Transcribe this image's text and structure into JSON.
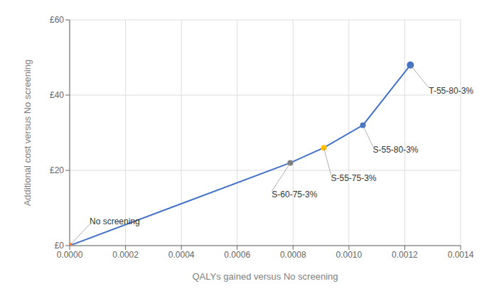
{
  "chart_data": {
    "type": "line",
    "x": [
      0.0,
      0.00079,
      0.00091,
      0.00105,
      0.00122
    ],
    "values": [
      0,
      22,
      26,
      32,
      48
    ],
    "color": "#4472C4",
    "colors": [
      "#E87722",
      "#7F7F7F",
      "#FFC000",
      "#4472C4",
      "#4472C4"
    ],
    "x_label": "QALYs gained versus No screening",
    "y_label": "Additional cost versus No screening",
    "xlim": [
      0.0,
      0.0014
    ],
    "ylim": [
      0,
      60
    ],
    "xticks": [
      {
        "value": 0.0,
        "label": "0.0000"
      },
      {
        "value": 0.0002,
        "label": "0.0002"
      },
      {
        "value": 0.0004,
        "label": "0.0004"
      },
      {
        "value": 0.0006,
        "label": "0.0006"
      },
      {
        "value": 0.0008,
        "label": "0.0008"
      },
      {
        "value": 0.001,
        "label": "0.0010"
      },
      {
        "value": 0.0012,
        "label": "0.0012"
      },
      {
        "value": 0.0014,
        "label": "0.0014"
      }
    ],
    "yticks": [
      {
        "value": 0,
        "label": "£0"
      },
      {
        "value": 20,
        "label": "£20"
      },
      {
        "value": 40,
        "label": "£40"
      },
      {
        "value": 60,
        "label": "£60"
      }
    ],
    "grid": true,
    "annotations": [
      {
        "text": "No screening",
        "x": 0.0,
        "y": 0
      },
      {
        "text": "S-60-75-3%",
        "x": 0.00079,
        "y": 22
      },
      {
        "text": "S-55-75-3%",
        "x": 0.00091,
        "y": 26
      },
      {
        "text": "S-55-80-3%",
        "x": 0.00105,
        "y": 32
      },
      {
        "text": "T-55-80-3%",
        "x": 0.00122,
        "y": 48
      }
    ]
  }
}
